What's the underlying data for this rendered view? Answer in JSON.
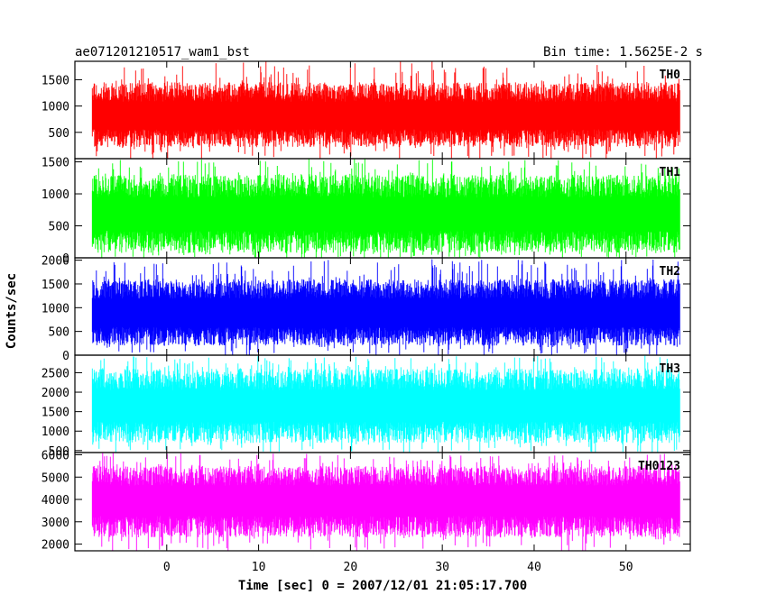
{
  "chart_data": {
    "type": "line",
    "title": "ae071201210517_wam1_bst",
    "subtitle": "Bin time: 1.5625E-2 s",
    "xlabel": "Time [sec] 0 = 2007/12/01 21:05:17.700",
    "ylabel": "Counts/sec",
    "xlim": [
      -10,
      57
    ],
    "x_range": [
      -8.1,
      55.9
    ],
    "xticks": [
      0,
      10,
      20,
      30,
      40,
      50
    ],
    "grid": false,
    "panels": [
      {
        "name": "TH0",
        "color": "#ff0000",
        "ylim": [
          0,
          1850
        ],
        "yticks": [
          500,
          1000,
          1500
        ],
        "mean": 780,
        "low": 220,
        "high": 1450,
        "spike": 1850
      },
      {
        "name": "TH1",
        "color": "#00ff00",
        "ylim": [
          0,
          1550
        ],
        "yticks": [
          0,
          500,
          1000,
          1500
        ],
        "mean": 650,
        "low": 80,
        "high": 1300,
        "spike": 1550
      },
      {
        "name": "TH2",
        "color": "#0000ff",
        "ylim": [
          0,
          2050
        ],
        "yticks": [
          0,
          500,
          1000,
          1500,
          2000
        ],
        "mean": 850,
        "low": 200,
        "high": 1600,
        "spike": 2050
      },
      {
        "name": "TH3",
        "color": "#00ffff",
        "ylim": [
          450,
          2950
        ],
        "yticks": [
          500,
          1000,
          1500,
          2000,
          2500
        ],
        "mean": 1600,
        "low": 700,
        "high": 2600,
        "spike": 2950
      },
      {
        "name": "TH0123",
        "color": "#ff00ff",
        "ylim": [
          1700,
          6100
        ],
        "yticks": [
          2000,
          3000,
          4000,
          5000,
          6000
        ],
        "mean": 3900,
        "low": 2300,
        "high": 5500,
        "spike": 6100
      }
    ]
  }
}
